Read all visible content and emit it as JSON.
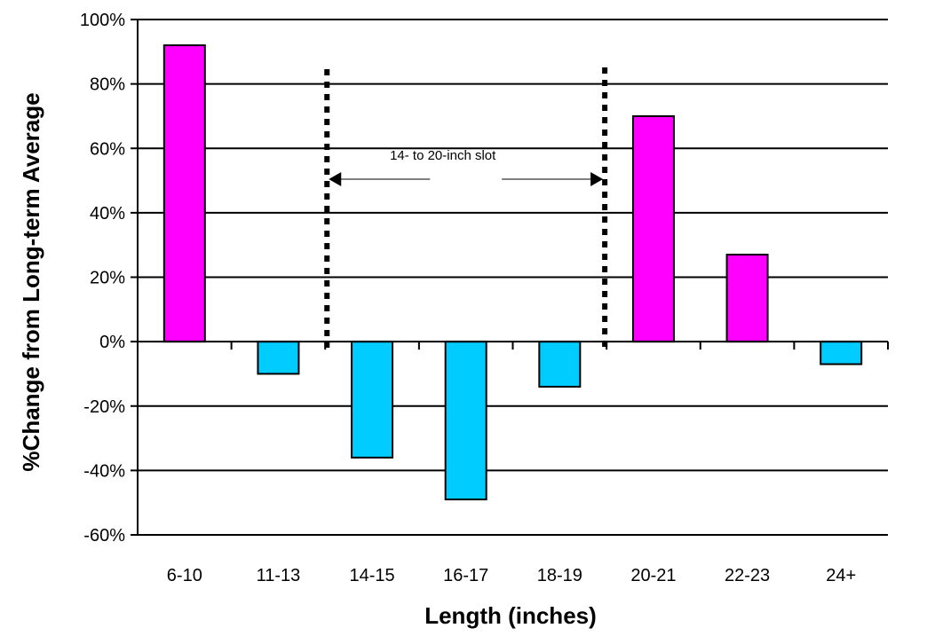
{
  "chart_data": {
    "type": "bar",
    "categories": [
      "6-10",
      "11-13",
      "14-15",
      "16-17",
      "18-19",
      "20-21",
      "22-23",
      "24+"
    ],
    "values": [
      92,
      -10,
      -36,
      -49,
      -14,
      70,
      27,
      -7
    ],
    "xlabel": "Length (inches)",
    "ylabel": "%Change from Long-term Average",
    "ylim": [
      -60,
      100
    ],
    "yticks": [
      100,
      80,
      60,
      40,
      20,
      0,
      -20,
      -40,
      -60
    ],
    "ytick_labels": [
      "100%",
      "80%",
      "60%",
      "40%",
      "20%",
      "0%",
      "-20%",
      "-40%",
      "-60%"
    ],
    "grid": true,
    "positive_color": "#ff00ff",
    "negative_color": "#00ccff",
    "annotation": {
      "text": "14- to 20-inch slot",
      "from_boundary": "11-13|14-15",
      "to_boundary": "18-19|20-21"
    }
  }
}
